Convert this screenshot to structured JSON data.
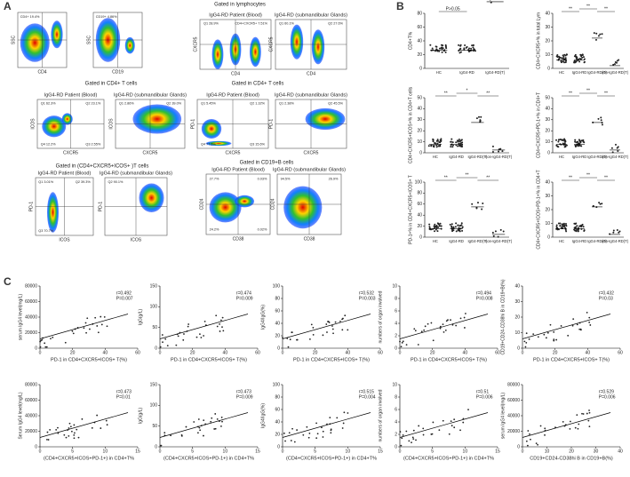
{
  "panel_a": {
    "label": "A",
    "headers": [
      "Gated in lymphocytes",
      "Gated in CD4+ T cells",
      "Gated in CD4+ T cells",
      "Gated in (CD4+CXCR5+ICOS+ )T cells",
      "Gated in CD19+B cells"
    ],
    "plots": [
      {
        "x_label": "CD4",
        "y_label": "SSC",
        "gates": [
          "CD4+ 19.4%"
        ]
      },
      {
        "x_label": "CD19",
        "y_label": "SSC",
        "gates": [
          "CD19+ 4.86%"
        ]
      },
      {
        "title": "IgG4-RD Patient (Blood)",
        "x_label": "CD4",
        "y_label": "CXCR5",
        "gates": [
          "Q1 28.9%",
          "CD4+CXCR5+ 7.51%"
        ]
      },
      {
        "title": "IgG4-RD (submandibular Glands)",
        "x_label": "CD4",
        "y_label": "CXCR5",
        "gates": [
          "Q1 60.1%",
          "Q2 27.6%"
        ]
      },
      {
        "title": "IgG4-RD Patient (Blood)",
        "x_label": "CXCR5",
        "y_label": "ICOS",
        "gates": [
          "Q1 62.3%",
          "Q2 23.1%",
          "Q4 12.2%",
          "Q3 2.55%"
        ]
      },
      {
        "title": "IgG4-RD (submandibular Glands)",
        "x_label": "CXCR5",
        "y_label": "ICOS",
        "gates": [
          "Q1 2.86%",
          "Q2 39.0%"
        ]
      },
      {
        "title": "IgG4-RD Patient (Blood)",
        "x_label": "CXCR5",
        "y_label": "PD-1",
        "gates": [
          "Q1 5.45%",
          "Q2 1.32%",
          "Q4 77.6%",
          "Q3 15.6%"
        ]
      },
      {
        "title": "IgG4-RD (submandibular Glands)",
        "x_label": "CXCR5",
        "y_label": "PD-1",
        "gates": [
          "Q1 2.38%",
          "Q2 45.5%"
        ]
      },
      {
        "title": "IgG4-RD Patient (Blood)",
        "x_label": "ICOS",
        "y_label": "PD-1",
        "gates": [
          "Q1 3.01%",
          "Q2 39.3%",
          "Q3 70.7%"
        ]
      },
      {
        "title": "IgG4-RD (submandibular Glands)",
        "x_label": "ICOS",
        "y_label": "PD-1",
        "gates": [
          "Q2 90.1%"
        ]
      },
      {
        "title": "IgG4-RD Patient (Blood)",
        "x_label": "CD38",
        "y_label": "CD24",
        "gates": [
          "27.7%",
          "0.03%",
          "24.2%",
          "0.02%"
        ]
      },
      {
        "title": "IgG4-RD (submandibular Glands)",
        "x_label": "CD38",
        "y_label": "CD24",
        "gates": [
          "94.5%",
          "26.9%"
        ]
      }
    ]
  },
  "panel_b": {
    "label": "B",
    "plots": [
      {
        "y_label": "CD4+T%",
        "categories": [
          "HC",
          "IgG4-RD",
          "IgG4-RD(T)"
        ],
        "significance": [
          "P>0.05"
        ],
        "yticks": [
          0,
          20,
          40,
          60,
          80
        ]
      },
      {
        "y_label": "CD4+CXCR5+% in total Lym",
        "categories": [
          "HC",
          "IgG4-RD",
          "IgG4-RD(T)",
          "non-IgG4-RD(T)"
        ],
        "significance": [
          "**",
          "**",
          "**"
        ],
        "yticks": [
          0,
          10,
          20,
          30,
          40
        ]
      },
      {
        "y_label": "CD4+CXCR5+ICOS+% in CD4+T cells",
        "categories": [
          "HC",
          "IgG4-RD",
          "IgG4-RD(T)",
          "non-IgG4-RD(T)"
        ],
        "significance": [
          "**",
          "*",
          "**"
        ],
        "yticks": [
          0,
          10,
          20,
          30,
          40,
          50
        ]
      },
      {
        "y_label": "CD4+CXCR5+PD-1+% in CD4+T",
        "categories": [
          "HC",
          "IgG4-RD",
          "IgG4-RD(T)",
          "non-IgG4-RD(T)"
        ],
        "significance": [
          "**",
          "**",
          "**"
        ],
        "yticks": [
          0,
          10,
          20,
          30,
          40,
          50
        ]
      },
      {
        "y_label": "PD-1+% in CD4+CXCR5+ICOS+ T",
        "categories": [
          "HC",
          "IgG4-RD",
          "IgG4-RD(T)",
          "non-IgG4-RD(T)"
        ],
        "significance": [
          "**",
          "**",
          "**"
        ],
        "yticks": [
          0,
          20,
          40,
          60,
          80,
          100
        ]
      },
      {
        "y_label": "CD4+CXCR5+ICOS+PD-1+% in CD4+T",
        "categories": [
          "HC",
          "IgG4-RD",
          "IgG4-RD(T)",
          "non-IgG4-RD(T)"
        ],
        "significance": [
          "**",
          "**",
          "**"
        ],
        "yticks": [
          0,
          10,
          20,
          30,
          40
        ]
      }
    ]
  },
  "panel_c": {
    "label": "C",
    "plots": [
      {
        "y_label": "serum IgG4 level(mg/L)",
        "x_label": "PD-1 in CD4+CXCR5+ICOS+ T(%)",
        "r": "r=0.492",
        "p": "P=0.007",
        "yticks": [
          0,
          20000,
          40000,
          60000,
          80000
        ],
        "xticks": [
          0,
          20,
          40,
          60
        ]
      },
      {
        "y_label": "IgG(g/L)",
        "x_label": "PD-1 in CD4+CXCR5+ICOS+ T(%)",
        "r": "r=0.474",
        "p": "P=0.009",
        "yticks": [
          0,
          50,
          100,
          150
        ],
        "xticks": [
          0,
          20,
          40,
          60
        ]
      },
      {
        "y_label": "IgG4/IgG(%)",
        "x_label": "PD-1 in CD4+CXCR5+ICOS+ T(%)",
        "r": "r=0.532",
        "p": "P=0.003",
        "yticks": [
          0,
          20,
          40,
          60,
          80,
          100
        ],
        "xticks": [
          0,
          20,
          40,
          60
        ]
      },
      {
        "y_label": "numbers of organ involved",
        "x_label": "PD-1 in CD4+CXCR5+ICOS+ T(%)",
        "r": "r=0.494",
        "p": "P=0.008",
        "yticks": [
          0,
          2,
          4,
          6,
          8,
          10
        ],
        "xticks": [
          0,
          20,
          40,
          60
        ]
      },
      {
        "y_label": "CD19+CD24-CD38hi B in CD19+B(%)",
        "x_label": "PD-1 in CD4+CXCR5+ICOS+ T(%)",
        "r": "r=0.432",
        "p": "P=0.03",
        "yticks": [
          0,
          10,
          20,
          30,
          40
        ],
        "xticks": [
          0,
          20,
          40,
          60
        ]
      },
      {
        "y_label": "Serum IgG4 level(mg/L)",
        "x_label": "(CD4+CXCR5+ICOS+PD-1+) in CD4+T%",
        "r": "r=0.473",
        "p": "P=0.01",
        "yticks": [
          0,
          20000,
          40000,
          60000,
          80000
        ],
        "xticks": [
          0,
          5,
          10,
          15
        ]
      },
      {
        "y_label": "IgG(g/L)",
        "x_label": "(CD4+CXCR5+ICOS+PD-1+) in CD4+T%",
        "r": "r=0.473",
        "p": "P=0.009",
        "yticks": [
          0,
          50,
          100,
          150
        ],
        "xticks": [
          0,
          5,
          10,
          15
        ]
      },
      {
        "y_label": "IgG4/IgG(%)",
        "x_label": "(CD4+CXCR5+ICOS+PD-1+) in CD4+T%",
        "r": "r=0.515",
        "p": "P=0.004",
        "yticks": [
          0,
          20,
          40,
          60,
          80,
          100
        ],
        "xticks": [
          0,
          5,
          10,
          15
        ]
      },
      {
        "y_label": "numbers of organ involved",
        "x_label": "(CD4+CXCR5+ICOS+PD-1+) in CD4+T%",
        "r": "r=0.51",
        "p": "P=0.006",
        "yticks": [
          0,
          2,
          4,
          6,
          8,
          10
        ],
        "xticks": [
          0,
          5,
          10,
          15
        ]
      },
      {
        "y_label": "serum IgG4 level(mg/L)",
        "x_label": "CD19+CD24-CD38hi B in CD19+B(%)",
        "r": "r=0.529",
        "p": "P=0.006",
        "yticks": [
          0,
          20000,
          40000,
          60000,
          80000
        ],
        "xticks": [
          0,
          10,
          20,
          30,
          40
        ]
      }
    ]
  }
}
